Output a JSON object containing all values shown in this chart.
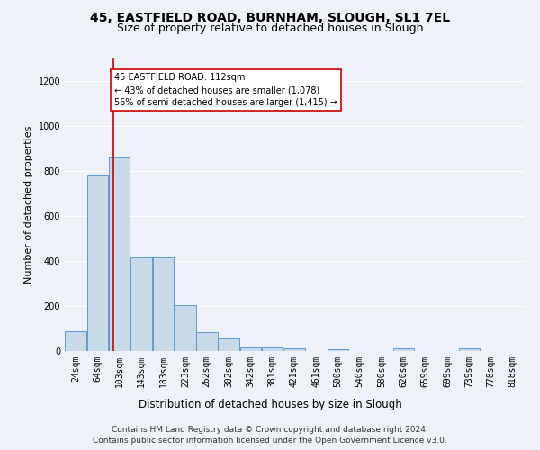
{
  "title": "45, EASTFIELD ROAD, BURNHAM, SLOUGH, SL1 7EL",
  "subtitle": "Size of property relative to detached houses in Slough",
  "xlabel": "Distribution of detached houses by size in Slough",
  "ylabel": "Number of detached properties",
  "footer_line1": "Contains HM Land Registry data © Crown copyright and database right 2024.",
  "footer_line2": "Contains public sector information licensed under the Open Government Licence v3.0.",
  "bins": [
    24,
    64,
    103,
    143,
    183,
    223,
    262,
    302,
    342,
    381,
    421,
    461,
    500,
    540,
    580,
    620,
    659,
    699,
    739,
    778,
    818
  ],
  "bin_labels": [
    "24sqm",
    "64sqm",
    "103sqm",
    "143sqm",
    "183sqm",
    "223sqm",
    "262sqm",
    "302sqm",
    "342sqm",
    "381sqm",
    "421sqm",
    "461sqm",
    "500sqm",
    "540sqm",
    "580sqm",
    "620sqm",
    "659sqm",
    "699sqm",
    "739sqm",
    "778sqm",
    "818sqm"
  ],
  "values": [
    90,
    780,
    860,
    415,
    415,
    205,
    85,
    55,
    15,
    18,
    12,
    0,
    8,
    0,
    0,
    12,
    0,
    0,
    12,
    0,
    0
  ],
  "bar_color": "#c8d9e8",
  "bar_edge_color": "#5b9bd5",
  "property_line_x": 112,
  "property_line_color": "#cc0000",
  "annotation_text": "45 EASTFIELD ROAD: 112sqm\n← 43% of detached houses are smaller (1,078)\n56% of semi-detached houses are larger (1,415) →",
  "annotation_box_color": "#ffffff",
  "annotation_box_edge": "#cc0000",
  "ylim": [
    0,
    1300
  ],
  "yticks": [
    0,
    200,
    400,
    600,
    800,
    1000,
    1200
  ],
  "background_color": "#eef2f8",
  "grid_color": "#ffffff",
  "title_fontsize": 10,
  "subtitle_fontsize": 9,
  "axis_label_fontsize": 8.5,
  "tick_fontsize": 7,
  "footer_fontsize": 6.5,
  "ylabel_fontsize": 8
}
